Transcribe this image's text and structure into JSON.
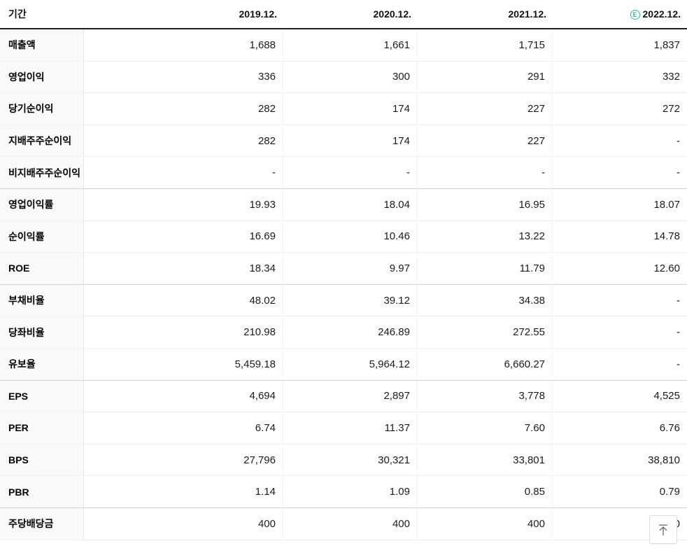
{
  "colors": {
    "estimate_badge": "#2abf8e",
    "header_border": "#1f1f1f",
    "group_border": "#d2d2d2",
    "row_border": "#f1f1f1",
    "label_column_bg": "#f9f9f9"
  },
  "table": {
    "period_label": "기간",
    "columns": [
      "2019.12.",
      "2020.12.",
      "2021.12.",
      "2022.12."
    ],
    "estimate_badge_text": "E",
    "rows": [
      {
        "label": "매출액",
        "values": [
          "1,688",
          "1,661",
          "1,715",
          "1,837"
        ],
        "group_end": false
      },
      {
        "label": "영업이익",
        "values": [
          "336",
          "300",
          "291",
          "332"
        ],
        "group_end": false
      },
      {
        "label": "당기순이익",
        "values": [
          "282",
          "174",
          "227",
          "272"
        ],
        "group_end": false
      },
      {
        "label": "지배주주순이익",
        "values": [
          "282",
          "174",
          "227",
          "-"
        ],
        "group_end": false
      },
      {
        "label": "비지배주주순이익",
        "values": [
          "-",
          "-",
          "-",
          "-"
        ],
        "group_end": true
      },
      {
        "label": "영업이익률",
        "values": [
          "19.93",
          "18.04",
          "16.95",
          "18.07"
        ],
        "group_end": false
      },
      {
        "label": "순이익률",
        "values": [
          "16.69",
          "10.46",
          "13.22",
          "14.78"
        ],
        "group_end": false
      },
      {
        "label": "ROE",
        "values": [
          "18.34",
          "9.97",
          "11.79",
          "12.60"
        ],
        "group_end": true
      },
      {
        "label": "부채비율",
        "values": [
          "48.02",
          "39.12",
          "34.38",
          "-"
        ],
        "group_end": false
      },
      {
        "label": "당좌비율",
        "values": [
          "210.98",
          "246.89",
          "272.55",
          "-"
        ],
        "group_end": false
      },
      {
        "label": "유보율",
        "values": [
          "5,459.18",
          "5,964.12",
          "6,660.27",
          "-"
        ],
        "group_end": true
      },
      {
        "label": "EPS",
        "values": [
          "4,694",
          "2,897",
          "3,778",
          "4,525"
        ],
        "group_end": false
      },
      {
        "label": "PER",
        "values": [
          "6.74",
          "11.37",
          "7.60",
          "6.76"
        ],
        "group_end": false
      },
      {
        "label": "BPS",
        "values": [
          "27,796",
          "30,321",
          "33,801",
          "38,810"
        ],
        "group_end": false
      },
      {
        "label": "PBR",
        "values": [
          "1.14",
          "1.09",
          "0.85",
          "0.79"
        ],
        "group_end": true
      },
      {
        "label": "주당배당금",
        "values": [
          "400",
          "400",
          "400",
          "400"
        ],
        "group_end": false
      }
    ]
  },
  "scroll_top_button": {
    "icon": "arrow-up-to-top"
  }
}
